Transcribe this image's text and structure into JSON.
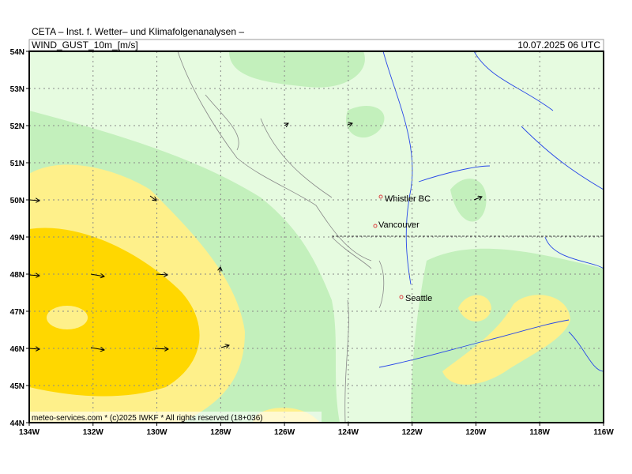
{
  "header": {
    "institute": "CETA – Inst. f. Wetter– und Klimafolgenanalysen –",
    "parameter": "WIND_GUST_10m_[m/s]",
    "valid_time": "10.07.2025 06 UTC"
  },
  "map": {
    "lat_labels": [
      "54N",
      "53N",
      "52N",
      "51N",
      "50N",
      "49N",
      "48N",
      "47N",
      "46N",
      "45N",
      "44N"
    ],
    "lon_labels": [
      "134W",
      "132W",
      "130W",
      "128W",
      "126W",
      "124W",
      "122W",
      "120W",
      "118W",
      "116W"
    ],
    "cities": [
      "Whistler BC",
      "Vancouver",
      "Seattle"
    ]
  },
  "footer": "meteo-services.com * (c)2025 IWKF * All rights reserved (18+036)"
}
